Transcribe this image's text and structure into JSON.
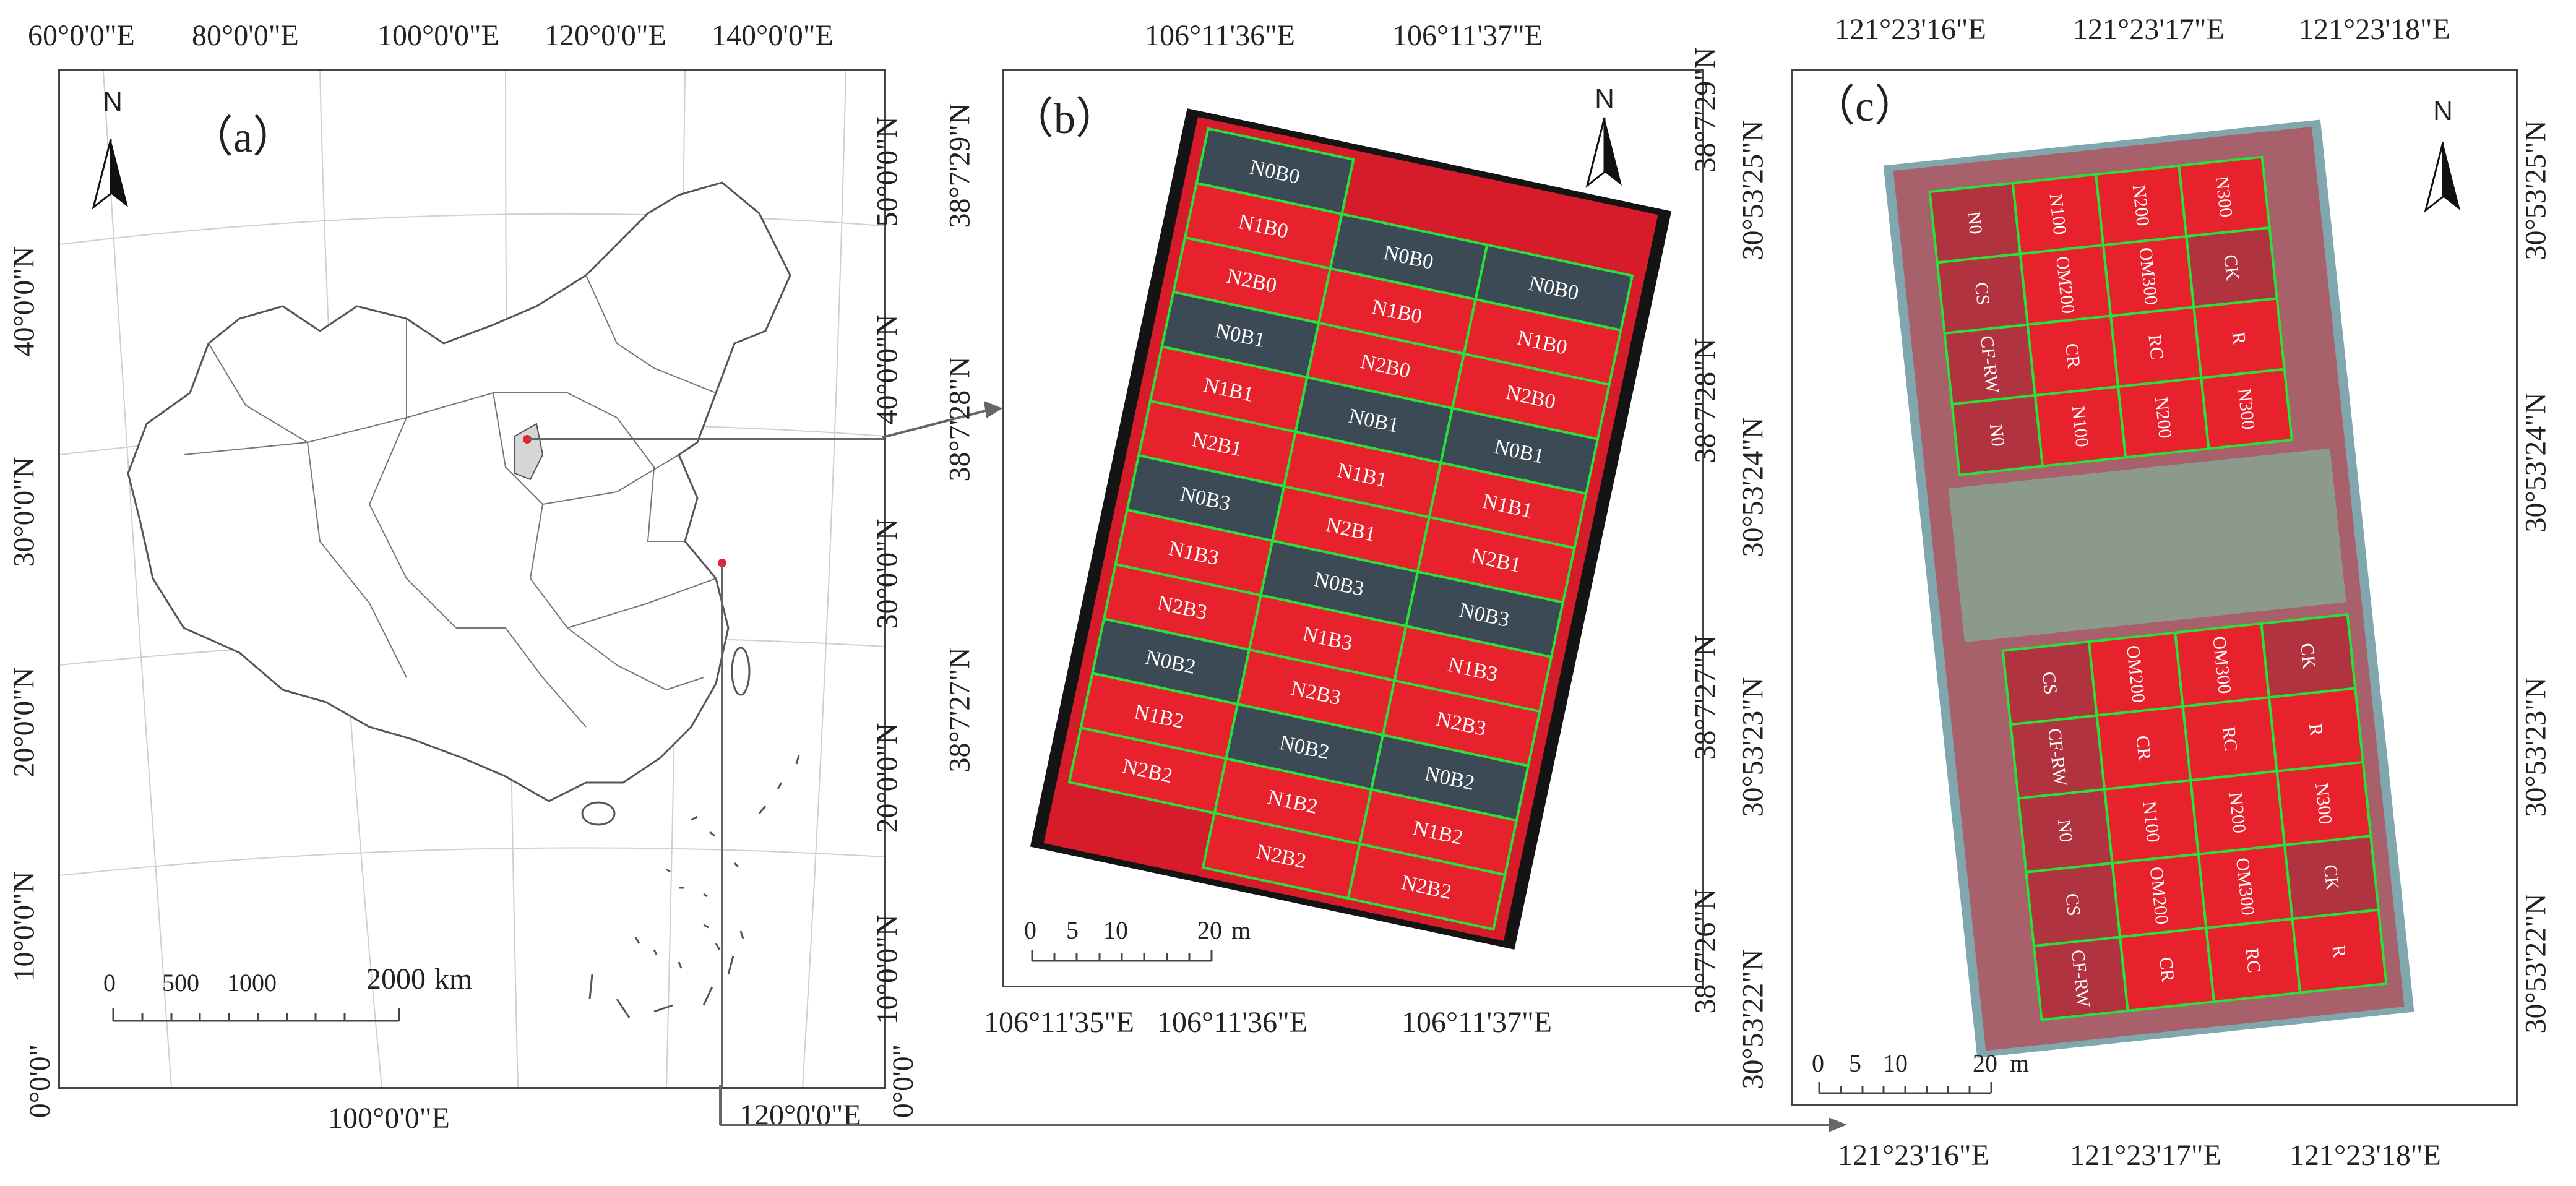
{
  "panel_a": {
    "label": "（a）",
    "top_lon": [
      "60°0'0\"E",
      "80°0'0\"E",
      "100°0'0\"E",
      "120°0'0\"E",
      "140°0'0\"E"
    ],
    "bottom_lon": [
      "100°0'0\"E",
      "120°0'0\"E"
    ],
    "left_lat": [
      "40°0'0\"N",
      "30°0'0\"N",
      "20°0'0\"N",
      "10°0'0\"N",
      "0°0'0\""
    ],
    "right_lat": [
      "50°0'0\"N",
      "40°0'0\"N",
      "30°0'0\"N",
      "20°0'0\"N",
      "10°0'0\"N",
      "0°0'0\""
    ],
    "north": "N",
    "scale_ticks": [
      "0",
      "500",
      "1000",
      "2000"
    ],
    "scale_unit": "km"
  },
  "panel_b": {
    "label": "（b）",
    "top_lon": [
      "106°11'36\"E",
      "106°11'37\"E"
    ],
    "bottom_lon": [
      "106°11'35\"E",
      "106°11'36\"E",
      "106°11'37\"E"
    ],
    "left_lat": [
      "38°7'29\"N",
      "38°7'28\"N",
      "38°7'27\"N"
    ],
    "right_lat": [
      "38°7'29\"N",
      "38°7'28\"N",
      "38°7'27\"N",
      "38°7'26\"N"
    ],
    "north": "N",
    "scale_ticks": [
      "0",
      "5",
      "10",
      "20"
    ],
    "scale_unit": "m",
    "plots": [
      [
        "N0B0",
        "",
        ""
      ],
      [
        "N1B0",
        "N0B0",
        "N0B0"
      ],
      [
        "N2B0",
        "N1B0",
        "N1B0"
      ],
      [
        "N0B1",
        "N2B0",
        "N2B0"
      ],
      [
        "N1B1",
        "N0B1",
        "N0B1"
      ],
      [
        "N2B1",
        "N1B1",
        "N1B1"
      ],
      [
        "N0B3",
        "N2B1",
        "N2B1"
      ],
      [
        "N1B3",
        "N0B3",
        "N0B3"
      ],
      [
        "N2B3",
        "N1B3",
        "N1B3"
      ],
      [
        "N0B2",
        "N2B3",
        "N2B3"
      ],
      [
        "N1B2",
        "N0B2",
        "N0B2"
      ],
      [
        "N2B2",
        "N1B2",
        "N1B2"
      ],
      [
        "",
        "N2B2",
        "N2B2"
      ]
    ]
  },
  "panel_c": {
    "label": "（c）",
    "top_lon": [
      "121°23'16\"E",
      "121°23'17\"E",
      "121°23'18\"E"
    ],
    "bottom_lon": [
      "121°23'16\"E",
      "121°23'17\"E",
      "121°23'18\"E"
    ],
    "left_lat": [
      "30°53'25\"N",
      "30°53'24\"N",
      "30°53'23\"N",
      "30°53'22\"N"
    ],
    "right_lat": [
      "30°53'25\"N",
      "30°53'24\"N",
      "30°53'23\"N",
      "30°53'22\"N"
    ],
    "north": "N",
    "scale_ticks": [
      "0",
      "5",
      "10",
      "20"
    ],
    "scale_unit": "m",
    "upper_plots": [
      [
        "N0",
        "N100",
        "N200",
        "N300"
      ],
      [
        "CS",
        "OM200",
        "OM300",
        "CK"
      ],
      [
        "CF-RW",
        "CR",
        "RC",
        "R"
      ],
      [
        "N0",
        "N100",
        "N200",
        "N300"
      ]
    ],
    "lower_plots": [
      [
        "CS",
        "OM200",
        "OM300",
        "CK"
      ],
      [
        "CF-RW",
        "CR",
        "RC",
        "R"
      ],
      [
        "N0",
        "N100",
        "N200",
        "N300"
      ],
      [
        "CS",
        "OM200",
        "OM300",
        "CK"
      ],
      [
        "CF-RW",
        "CR",
        "RC",
        "R"
      ]
    ]
  },
  "colors": {
    "field_red": "#e8222d",
    "dark_plot": "#3b4a55",
    "plot_border_green": "#27e23a",
    "map_line": "#555555"
  }
}
